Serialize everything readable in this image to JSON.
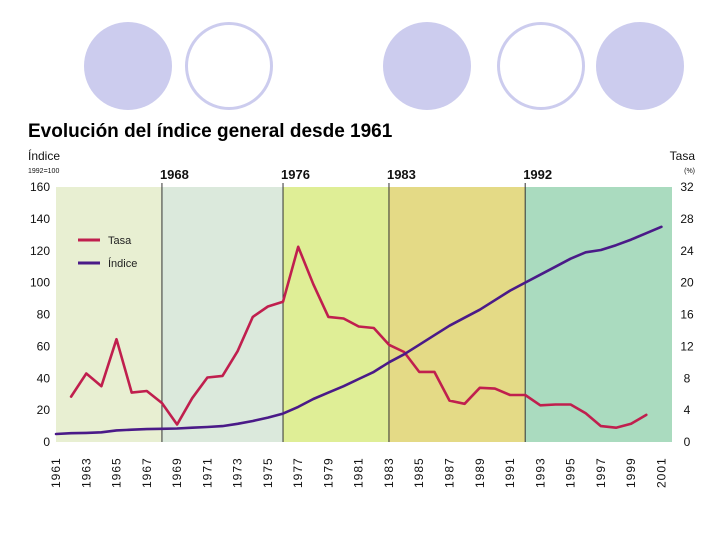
{
  "chart_data": {
    "type": "line",
    "title": "Evolución del índice general desde 1961",
    "left_axis": {
      "label": "Índice",
      "sublabel": "1992=100",
      "ylim": [
        0,
        160
      ],
      "ticks": [
        0,
        20,
        40,
        60,
        80,
        100,
        120,
        140,
        160
      ]
    },
    "right_axis": {
      "label": "Tasa",
      "sublabel": "(%)",
      "ylim": [
        0,
        32
      ],
      "ticks": [
        0,
        4,
        8,
        12,
        16,
        20,
        24,
        28,
        32
      ]
    },
    "x_range": [
      1961,
      2001
    ],
    "x_tick_labels": [
      "1961",
      "1963",
      "1965",
      "1967",
      "1969",
      "1971",
      "1973",
      "1975",
      "1977",
      "1979",
      "1981",
      "1983",
      "1985",
      "1987",
      "1989",
      "1991",
      "1993",
      "1995",
      "1997",
      "1999",
      "2001"
    ],
    "periods": [
      {
        "year": 1961,
        "label": "",
        "color": "#e8efd2"
      },
      {
        "year": 1968,
        "label": "1968",
        "color": "#dbe9dc"
      },
      {
        "year": 1976,
        "label": "1976",
        "color": "#dfee96"
      },
      {
        "year": 1983,
        "label": "1983",
        "color": "#e4da86"
      },
      {
        "year": 1992,
        "label": "1992",
        "color": "#aadbbf"
      }
    ],
    "x_end": 2001.7,
    "series": [
      {
        "name": "Tasa",
        "axis": "right",
        "color": "#c01f4e",
        "x": [
          1962,
          1963,
          1964,
          1965,
          1966,
          1967,
          1968,
          1969,
          1970,
          1971,
          1972,
          1973,
          1974,
          1975,
          1976,
          1977,
          1978,
          1979,
          1980,
          1981,
          1982,
          1983,
          1984,
          1985,
          1986,
          1987,
          1988,
          1989,
          1990,
          1991,
          1992,
          1993,
          1994,
          1995,
          1996,
          1997,
          1998,
          1999,
          2000
        ],
        "values": [
          5.7,
          8.6,
          7.0,
          12.9,
          6.2,
          6.4,
          4.9,
          2.2,
          5.5,
          8.1,
          8.3,
          11.4,
          15.7,
          17.0,
          17.6,
          24.5,
          19.8,
          15.7,
          15.5,
          14.5,
          14.3,
          12.2,
          11.3,
          8.8,
          8.8,
          5.2,
          4.8,
          6.8,
          6.7,
          5.9,
          5.9,
          4.6,
          4.7,
          4.7,
          3.6,
          2.0,
          1.8,
          2.3,
          3.4
        ]
      },
      {
        "name": "Índice",
        "axis": "left",
        "color": "#4a1a88",
        "x": [
          1961,
          1962,
          1963,
          1964,
          1965,
          1966,
          1967,
          1968,
          1969,
          1970,
          1971,
          1972,
          1973,
          1974,
          1975,
          1976,
          1977,
          1978,
          1979,
          1980,
          1981,
          1982,
          1983,
          1984,
          1985,
          1986,
          1987,
          1988,
          1989,
          1990,
          1991,
          1992,
          1993,
          1994,
          1995,
          1996,
          1997,
          1998,
          1999,
          2000,
          2001
        ],
        "values": [
          5,
          5.5,
          5.7,
          6.1,
          7.3,
          7.7,
          8.1,
          8.3,
          8.5,
          9,
          9.4,
          10,
          11.4,
          13.2,
          15.3,
          17.8,
          22,
          27,
          31,
          35,
          39.5,
          44,
          50,
          55,
          61,
          67,
          73,
          78,
          83,
          89,
          95,
          100,
          105,
          110,
          115,
          119,
          120.5,
          123.5,
          127,
          131,
          135
        ]
      }
    ]
  }
}
